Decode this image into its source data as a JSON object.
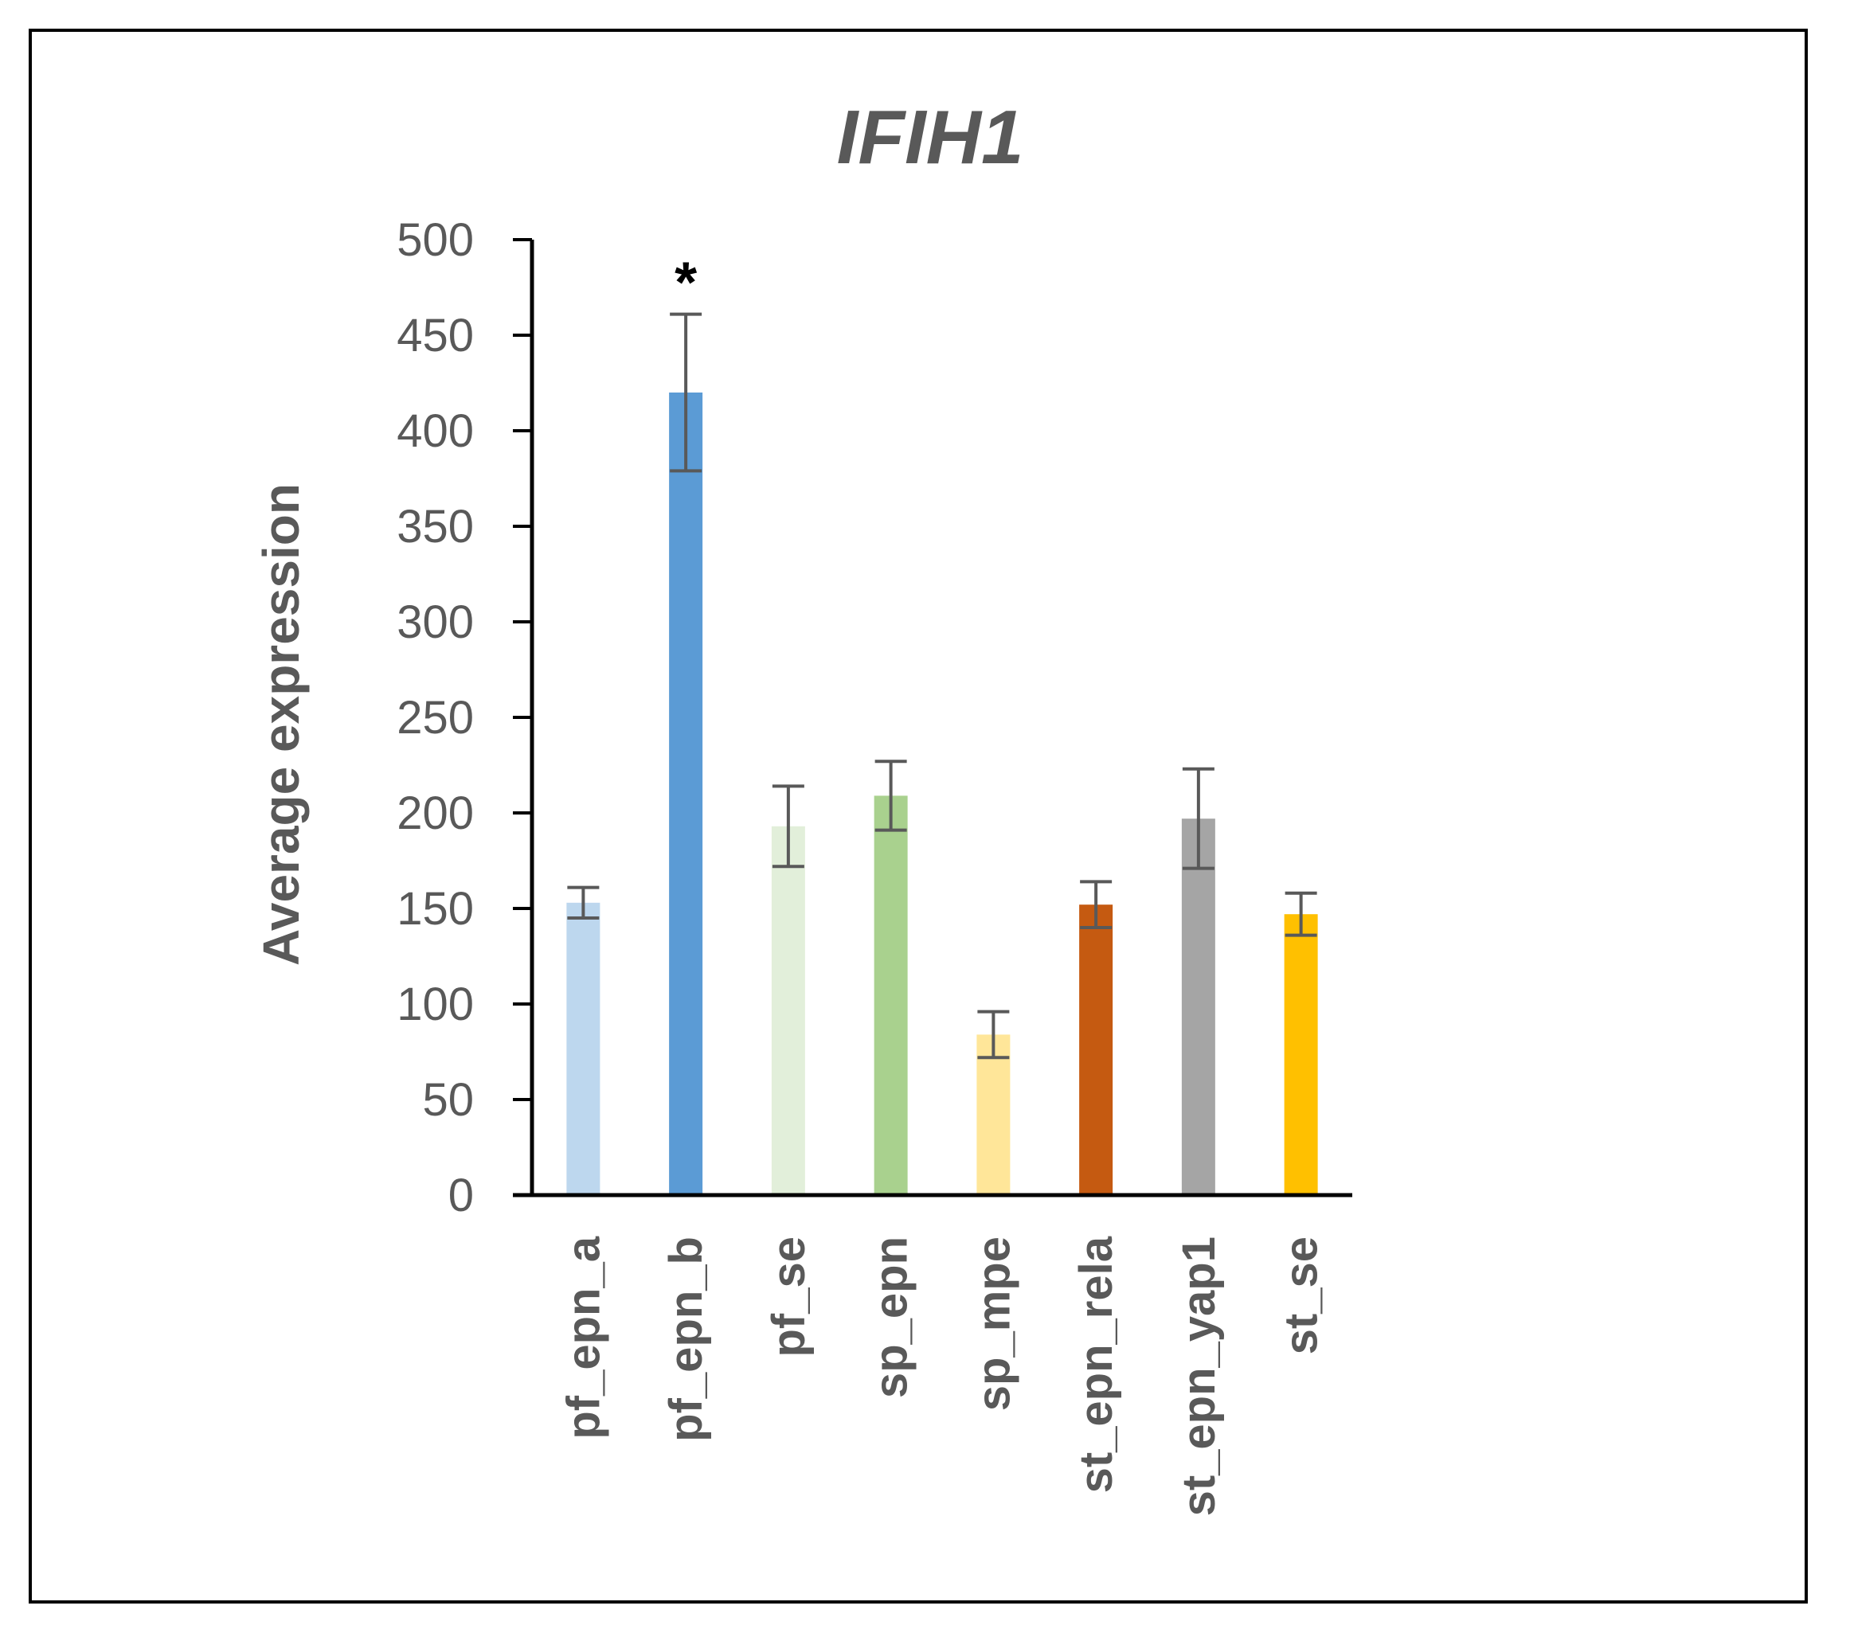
{
  "chart_data": {
    "type": "bar",
    "title": "IFIH1",
    "xlabel": "",
    "ylabel": "Average expression",
    "ylim": [
      0,
      500
    ],
    "yticks": [
      0,
      50,
      100,
      150,
      200,
      250,
      300,
      350,
      400,
      450,
      500
    ],
    "categories": [
      "pf_epn_a",
      "pf_epn_b",
      "pf_se",
      "sp_epn",
      "sp_mpe",
      "st_epn_rela",
      "st_epn_yap1",
      "st_se"
    ],
    "values": [
      153,
      420,
      193,
      209,
      84,
      152,
      197,
      147
    ],
    "error": [
      8,
      41,
      21,
      18,
      12,
      12,
      26,
      11
    ],
    "colors": [
      "#BDD7EE",
      "#5B9BD5",
      "#E2EFDA",
      "#A9D18E",
      "#FFE699",
      "#C55A11",
      "#A5A5A5",
      "#FFC000"
    ],
    "annotations": [
      {
        "category": "pf_epn_b",
        "text": "*"
      }
    ],
    "grid": false,
    "legend": "none"
  }
}
